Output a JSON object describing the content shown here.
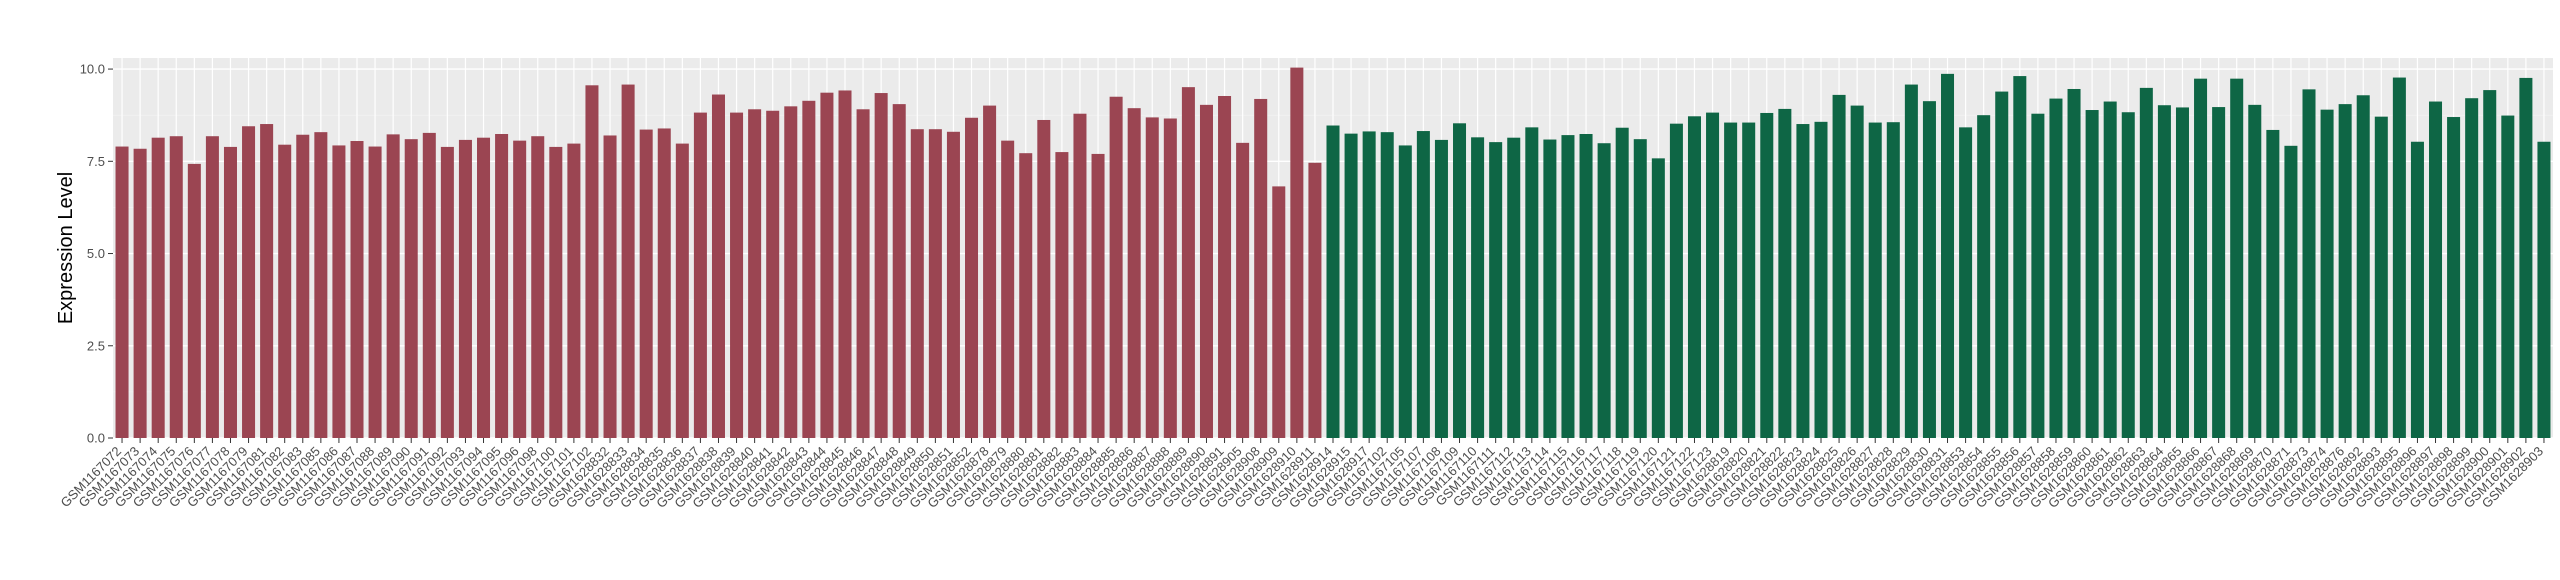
{
  "chart_data": {
    "type": "bar",
    "title": "",
    "xlabel": "",
    "ylabel": "Expression Level",
    "ylim": [
      0,
      10.3
    ],
    "yticks": [
      0.0,
      2.5,
      5.0,
      7.5,
      10.0
    ],
    "ytick_labels": [
      "0.0",
      "2.5",
      "5.0",
      "7.5",
      "10.0"
    ],
    "grid": true,
    "legend": "none",
    "colors": {
      "group_a": "#9b4552",
      "group_b": "#0e6645",
      "panel_bg": "#ebebeb",
      "grid_major": "#ffffff",
      "grid_minor": "#f2f2f2"
    },
    "groups": [
      {
        "color_key": "group_a",
        "bars": [
          {
            "label": "GSM1167072",
            "value": 7.9
          },
          {
            "label": "GSM1167073",
            "value": 7.84
          },
          {
            "label": "GSM1167074",
            "value": 8.14
          },
          {
            "label": "GSM1167075",
            "value": 8.18
          },
          {
            "label": "GSM1167076",
            "value": 7.43
          },
          {
            "label": "GSM1167077",
            "value": 8.18
          },
          {
            "label": "GSM1167078",
            "value": 7.89
          },
          {
            "label": "GSM1167079",
            "value": 8.45
          },
          {
            "label": "GSM1167081",
            "value": 8.51
          },
          {
            "label": "GSM1167082",
            "value": 7.95
          },
          {
            "label": "GSM1167083",
            "value": 8.22
          },
          {
            "label": "GSM1167085",
            "value": 8.29
          },
          {
            "label": "GSM1167086",
            "value": 7.93
          },
          {
            "label": "GSM1167087",
            "value": 8.05
          },
          {
            "label": "GSM1167088",
            "value": 7.9
          },
          {
            "label": "GSM1167089",
            "value": 8.23
          },
          {
            "label": "GSM1167090",
            "value": 8.1
          },
          {
            "label": "GSM1167091",
            "value": 8.27
          },
          {
            "label": "GSM1167092",
            "value": 7.89
          },
          {
            "label": "GSM1167093",
            "value": 8.08
          },
          {
            "label": "GSM1167094",
            "value": 8.14
          },
          {
            "label": "GSM1167095",
            "value": 8.24
          },
          {
            "label": "GSM1167096",
            "value": 8.06
          },
          {
            "label": "GSM1167098",
            "value": 8.18
          },
          {
            "label": "GSM1167100",
            "value": 7.89
          },
          {
            "label": "GSM1167101",
            "value": 7.98
          },
          {
            "label": "GSM1167102",
            "value": 9.56
          },
          {
            "label": "GSM1628832",
            "value": 8.2
          },
          {
            "label": "GSM1628833",
            "value": 9.58
          },
          {
            "label": "GSM1628834",
            "value": 8.36
          },
          {
            "label": "GSM1628835",
            "value": 8.39
          },
          {
            "label": "GSM1628836",
            "value": 7.98
          },
          {
            "label": "GSM1628837",
            "value": 8.82
          },
          {
            "label": "GSM1628838",
            "value": 9.31
          },
          {
            "label": "GSM1628839",
            "value": 8.82
          },
          {
            "label": "GSM1628840",
            "value": 8.91
          },
          {
            "label": "GSM1628841",
            "value": 8.87
          },
          {
            "label": "GSM1628842",
            "value": 8.99
          },
          {
            "label": "GSM1628843",
            "value": 9.14
          },
          {
            "label": "GSM1628844",
            "value": 9.36
          },
          {
            "label": "GSM1628845",
            "value": 9.42
          },
          {
            "label": "GSM1628846",
            "value": 8.91
          },
          {
            "label": "GSM1628847",
            "value": 9.35
          },
          {
            "label": "GSM1628848",
            "value": 9.05
          },
          {
            "label": "GSM1628849",
            "value": 8.37
          },
          {
            "label": "GSM1628850",
            "value": 8.37
          },
          {
            "label": "GSM1628851",
            "value": 8.3
          },
          {
            "label": "GSM1628852",
            "value": 8.68
          },
          {
            "label": "GSM1628878",
            "value": 9.01
          },
          {
            "label": "GSM1628879",
            "value": 8.06
          },
          {
            "label": "GSM1628880",
            "value": 7.72
          },
          {
            "label": "GSM1628881",
            "value": 8.62
          },
          {
            "label": "GSM1628882",
            "value": 7.75
          },
          {
            "label": "GSM1628883",
            "value": 8.79
          },
          {
            "label": "GSM1628884",
            "value": 7.7
          },
          {
            "label": "GSM1628885",
            "value": 9.25
          },
          {
            "label": "GSM1628886",
            "value": 8.94
          },
          {
            "label": "GSM1628887",
            "value": 8.69
          },
          {
            "label": "GSM1628888",
            "value": 8.66
          },
          {
            "label": "GSM1628889",
            "value": 9.51
          },
          {
            "label": "GSM1628890",
            "value": 9.03
          },
          {
            "label": "GSM1628891",
            "value": 9.27
          },
          {
            "label": "GSM1628905",
            "value": 8.0
          },
          {
            "label": "GSM1628908",
            "value": 9.19
          },
          {
            "label": "GSM1628909",
            "value": 6.82
          },
          {
            "label": "GSM1628910",
            "value": 10.04
          },
          {
            "label": "GSM1628911",
            "value": 7.46
          }
        ]
      },
      {
        "color_key": "group_b",
        "bars": [
          {
            "label": "GSM1628914",
            "value": 8.47
          },
          {
            "label": "GSM1628915",
            "value": 8.25
          },
          {
            "label": "GSM1628917",
            "value": 8.31
          },
          {
            "label": "GSM1167102",
            "value": 8.29
          },
          {
            "label": "GSM1167105",
            "value": 7.93
          },
          {
            "label": "GSM1167107",
            "value": 8.32
          },
          {
            "label": "GSM1167108",
            "value": 8.08
          },
          {
            "label": "GSM1167109",
            "value": 8.53
          },
          {
            "label": "GSM1167110",
            "value": 8.15
          },
          {
            "label": "GSM1167111",
            "value": 8.02
          },
          {
            "label": "GSM1167112",
            "value": 8.14
          },
          {
            "label": "GSM1167113",
            "value": 8.42
          },
          {
            "label": "GSM1167114",
            "value": 8.09
          },
          {
            "label": "GSM1167115",
            "value": 8.21
          },
          {
            "label": "GSM1167116",
            "value": 8.24
          },
          {
            "label": "GSM1167117",
            "value": 7.99
          },
          {
            "label": "GSM1167118",
            "value": 8.41
          },
          {
            "label": "GSM1167119",
            "value": 8.1
          },
          {
            "label": "GSM1167120",
            "value": 7.58
          },
          {
            "label": "GSM1167121",
            "value": 8.52
          },
          {
            "label": "GSM1167122",
            "value": 8.72
          },
          {
            "label": "GSM1167123",
            "value": 8.82
          },
          {
            "label": "GSM1628819",
            "value": 8.55
          },
          {
            "label": "GSM1628820",
            "value": 8.55
          },
          {
            "label": "GSM1628821",
            "value": 8.81
          },
          {
            "label": "GSM1628822",
            "value": 8.92
          },
          {
            "label": "GSM1628823",
            "value": 8.51
          },
          {
            "label": "GSM1628824",
            "value": 8.57
          },
          {
            "label": "GSM1628825",
            "value": 9.3
          },
          {
            "label": "GSM1628826",
            "value": 9.01
          },
          {
            "label": "GSM1628827",
            "value": 8.55
          },
          {
            "label": "GSM1628828",
            "value": 8.56
          },
          {
            "label": "GSM1628829",
            "value": 9.58
          },
          {
            "label": "GSM1628830",
            "value": 9.13
          },
          {
            "label": "GSM1628831",
            "value": 9.87
          },
          {
            "label": "GSM1628853",
            "value": 8.42
          },
          {
            "label": "GSM1628854",
            "value": 8.75
          },
          {
            "label": "GSM1628855",
            "value": 9.39
          },
          {
            "label": "GSM1628856",
            "value": 9.81
          },
          {
            "label": "GSM1628857",
            "value": 8.79
          },
          {
            "label": "GSM1628858",
            "value": 9.2
          },
          {
            "label": "GSM1628859",
            "value": 9.46
          },
          {
            "label": "GSM1628860",
            "value": 8.89
          },
          {
            "label": "GSM1628861",
            "value": 9.12
          },
          {
            "label": "GSM1628862",
            "value": 8.83
          },
          {
            "label": "GSM1628863",
            "value": 9.49
          },
          {
            "label": "GSM1628864",
            "value": 9.02
          },
          {
            "label": "GSM1628865",
            "value": 8.96
          },
          {
            "label": "GSM1628866",
            "value": 9.74
          },
          {
            "label": "GSM1628867",
            "value": 8.97
          },
          {
            "label": "GSM1628868",
            "value": 9.74
          },
          {
            "label": "GSM1628869",
            "value": 9.03
          },
          {
            "label": "GSM1628870",
            "value": 8.35
          },
          {
            "label": "GSM1628871",
            "value": 7.92
          },
          {
            "label": "GSM1628873",
            "value": 9.45
          },
          {
            "label": "GSM1628874",
            "value": 8.9
          },
          {
            "label": "GSM1628876",
            "value": 9.05
          },
          {
            "label": "GSM1628892",
            "value": 9.29
          },
          {
            "label": "GSM1628893",
            "value": 8.71
          },
          {
            "label": "GSM1628895",
            "value": 9.77
          },
          {
            "label": "GSM1628896",
            "value": 8.03
          },
          {
            "label": "GSM1628897",
            "value": 9.12
          },
          {
            "label": "GSM1628898",
            "value": 8.7
          },
          {
            "label": "GSM1628899",
            "value": 9.21
          },
          {
            "label": "GSM1628900",
            "value": 9.43
          },
          {
            "label": "GSM1628901",
            "value": 8.74
          },
          {
            "label": "GSM1628902",
            "value": 9.76
          },
          {
            "label": "GSM1628903",
            "value": 8.03
          }
        ]
      }
    ]
  }
}
